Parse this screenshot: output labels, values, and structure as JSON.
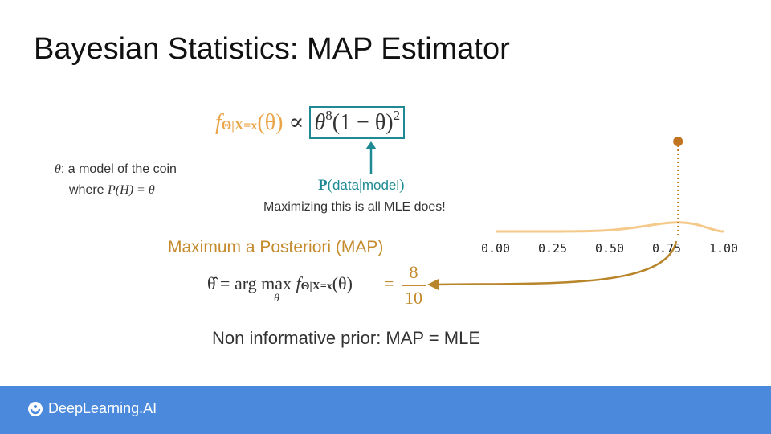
{
  "title": "Bayesian Statistics: MAP Estimator",
  "posterior": {
    "lhs": "f",
    "lhs_sub": "Θ|X=x",
    "lhs_arg": "(θ)",
    "propto": "∝",
    "likelihood_base": "θ",
    "likelihood_exp1": "8",
    "likelihood_mid": "(1 − θ)",
    "likelihood_exp2": "2"
  },
  "theta_def": {
    "line1_var": "θ",
    "line1_text": ": a model of the coin",
    "line2_text": "where ",
    "line2_math": "P(H) = θ"
  },
  "likelihood_label": {
    "p": "P",
    "open": "(",
    "data": "data",
    "sep": "|",
    "model": "model",
    "close": ")"
  },
  "mle_note": "Maximizing this is all MLE does!",
  "map_title": "Maximum a Posteriori (MAP)",
  "argmax": {
    "lhs": "θ̂ = arg max",
    "under": "θ",
    "f": "f",
    "sub": "Θ|X=x",
    "arg": "(θ)",
    "eq": "=",
    "num": "8",
    "den": "10"
  },
  "non_informative": "Non informative prior: MAP = MLE",
  "brand": "DeepLearning.AI",
  "chart_data": {
    "type": "line",
    "x_ticks": [
      "0.00",
      "0.25",
      "0.50",
      "0.75",
      "1.00"
    ],
    "xlim": [
      0,
      1
    ],
    "series": [
      {
        "formula": "θ^8(1−θ)^2",
        "x": [
          0.0,
          0.3,
          0.4,
          0.5,
          0.55,
          0.6,
          0.65,
          0.7,
          0.75,
          0.8,
          0.85,
          0.9,
          0.95,
          1.0
        ],
        "y": [
          0.0,
          0.0005,
          0.0024,
          0.0098,
          0.017,
          0.0269,
          0.039,
          0.0519,
          0.0626,
          0.0671,
          0.0613,
          0.043,
          0.0166,
          0.0
        ]
      }
    ],
    "max_point": {
      "x": 0.8,
      "y": 0.0671
    },
    "colors": {
      "curve": "#f5c98a",
      "point": "#c0741f",
      "arrow": "#b8852a",
      "teal": "#1f8a93"
    }
  }
}
